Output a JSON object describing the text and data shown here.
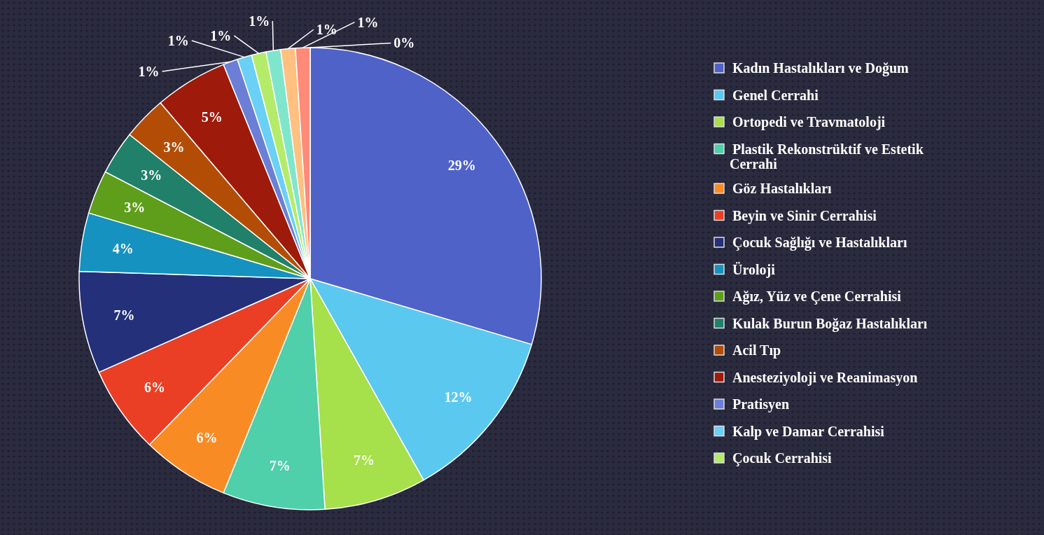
{
  "chart_data": {
    "type": "pie",
    "categories": [
      "Kadın Hastalıkları ve Doğum",
      "Genel Cerrahi",
      "Ortopedi ve Travmatoloji",
      "Plastik Rekonstrüktif ve Estetik Cerrahi",
      "Göz Hastalıkları",
      "Beyin ve Sinir Cerrahisi",
      "Çocuk Sağlığı ve Hastalıkları",
      "Üroloji",
      "Ağız, Yüz ve Çene Cerrahisi",
      "Kulak Burun Boğaz Hastalıkları",
      "Acil Tıp",
      "Anesteziyoloji ve Reanimasyon",
      "Pratisyen",
      "Kalp ve Damar Cerrahisi",
      "Çocuk Cerrahisi",
      null,
      null,
      null,
      null
    ],
    "values": [
      29,
      12,
      7,
      7,
      6,
      6,
      7,
      4,
      3,
      3,
      3,
      5,
      1,
      1,
      1,
      1,
      1,
      1,
      0
    ],
    "value_labels": [
      "29%",
      "12%",
      "7%",
      "7%",
      "6%",
      "6%",
      "7%",
      "4%",
      "3%",
      "3%",
      "3%",
      "5%",
      "1%",
      "1%",
      "1%",
      "1%",
      "1%",
      "1%",
      "0%"
    ],
    "colors": [
      "#4f62c8",
      "#5bc8ef",
      "#a6e04a",
      "#4fcfaa",
      "#f98b25",
      "#ea3f25",
      "#24307a",
      "#1592c0",
      "#5e9e1a",
      "#21806a",
      "#b34d06",
      "#9e1a0a",
      "#6b7fd6",
      "#6ad0f5",
      "#b4ec6a",
      "#7fe6cc",
      "#ffc080",
      "#ff8a78",
      "#2a3a8a"
    ],
    "legend": "right"
  }
}
